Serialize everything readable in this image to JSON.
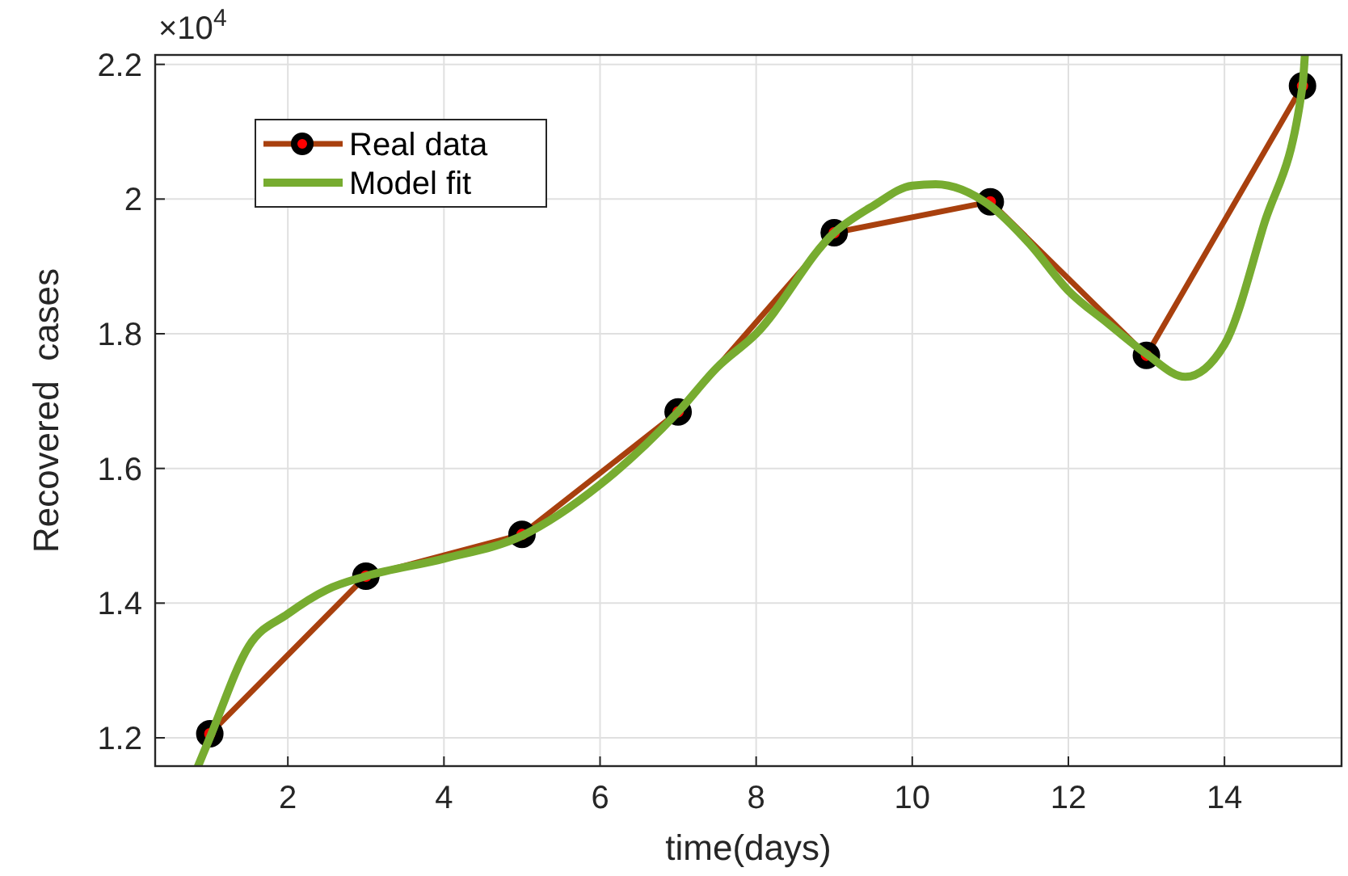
{
  "chart_data": {
    "type": "line",
    "xlabel": "time(days)",
    "ylabel": "Recovered  cases",
    "annotations": [
      "×10$^{4}$"
    ],
    "xlim": [
      0.3,
      15.5
    ],
    "xticks": [
      2,
      4,
      6,
      8,
      10,
      12,
      14
    ],
    "ylim": [
      1.158,
      2.214
    ],
    "yticks": [
      1.2,
      1.4,
      1.6,
      1.8,
      2,
      2.2
    ],
    "grid": true,
    "legend": "top left",
    "series": [
      {
        "name": "Real data",
        "color": "#a8400e",
        "marker": "circle",
        "x": [
          1,
          3,
          5,
          7,
          9,
          11,
          13,
          15
        ],
        "values": [
          1.206,
          1.44,
          1.502,
          1.684,
          1.95,
          1.996,
          1.768,
          2.168
        ]
      },
      {
        "name": "Model fit",
        "color": "#77ac30",
        "marker": "none",
        "x": [
          0.85,
          1,
          1.5,
          2,
          2.5,
          3,
          4,
          5,
          6,
          7,
          7.5,
          8,
          9,
          9.5,
          10,
          10.3,
          11,
          11.5,
          12,
          12.5,
          13,
          13.5,
          14,
          14.5,
          15,
          15.03
        ],
        "values": [
          1.158,
          1.2,
          1.336,
          1.384,
          1.42,
          1.44,
          1.466,
          1.5,
          1.576,
          1.684,
          1.75,
          1.8,
          1.95,
          1.99,
          2.02,
          2.022,
          1.99,
          1.934,
          1.864,
          1.816,
          1.77,
          1.736,
          1.784,
          1.96,
          2.168,
          2.214
        ]
      }
    ]
  }
}
